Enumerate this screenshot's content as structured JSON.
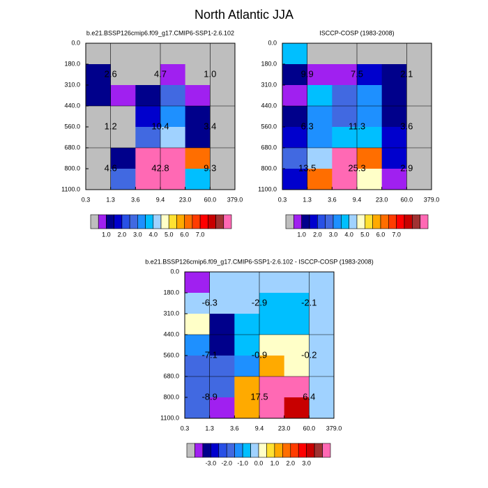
{
  "title": "North Atlantic JJA",
  "chart_data": [
    {
      "type": "heatmap",
      "title": "b.e21.BSSP126cmip6.f09_g17.CMIP6-SSP1-2.6.102",
      "x_edges": [
        "0.3",
        "1.3",
        "3.6",
        "9.4",
        "23.0",
        "60.0",
        "379.0"
      ],
      "y_edges": [
        "0.0",
        "180.0",
        "310.0",
        "440.0",
        "560.0",
        "680.0",
        "800.0",
        "1100.0"
      ],
      "values": [
        [
          0.2,
          0.2,
          0.2,
          0.2,
          0.2,
          0.2
        ],
        [
          1.2,
          0.2,
          0.2,
          0.8,
          0.2,
          0.2
        ],
        [
          1.2,
          0.8,
          1.2,
          2.7,
          0.8,
          0.2
        ],
        [
          0.2,
          0.2,
          1.7,
          3.2,
          1.2,
          0.2
        ],
        [
          0.2,
          0.2,
          2.7,
          4.2,
          1.3,
          0.2
        ],
        [
          0.2,
          1.2,
          9,
          9,
          6.2,
          0.2
        ],
        [
          0.2,
          2.7,
          9,
          9,
          3.7,
          0.2
        ]
      ],
      "summary": {
        "values": [
          [
            2.6,
            4.7,
            1.0
          ],
          [
            1.2,
            10.4,
            3.4
          ],
          [
            4.6,
            42.8,
            9.3
          ]
        ],
        "value_labels": [
          [
            "2.6",
            "4.7",
            "1.0"
          ],
          [
            "1.2",
            "10.4",
            "3.4"
          ],
          [
            "4.6",
            "42.8",
            "9.3"
          ]
        ]
      },
      "levels": [
        0.5,
        1,
        1.5,
        2,
        2.5,
        3,
        3.5,
        4,
        4.5,
        5,
        5.5,
        6,
        6.5,
        7,
        7.5,
        8,
        8.5
      ],
      "colors": [
        "#bebebe",
        "#a020f0",
        "#00008b",
        "#0000cd",
        "#2850e6",
        "#4169e1",
        "#1e90ff",
        "#00bfff",
        "#a0d2ff",
        "#ffffc8",
        "#ffe132",
        "#ffaa00",
        "#ff6e00",
        "#ff3c00",
        "#ff0000",
        "#c80000",
        "#a03232",
        "#ff69b4"
      ],
      "colorbar_ticks": [
        {
          "value": 1,
          "label": "1.0"
        },
        {
          "value": 2,
          "label": "2.0"
        },
        {
          "value": 3,
          "label": "3.0"
        },
        {
          "value": 4,
          "label": "4.0"
        },
        {
          "value": 5,
          "label": "5.0"
        },
        {
          "value": 6,
          "label": "6.0"
        },
        {
          "value": 7,
          "label": "7.0"
        }
      ]
    },
    {
      "type": "heatmap",
      "title": "ISCCP-COSP (1983-2008)",
      "x_edges": [
        "0.3",
        "1.3",
        "3.6",
        "9.4",
        "23.0",
        "60.0",
        "379.0"
      ],
      "y_edges": [
        "0.0",
        "180.0",
        "310.0",
        "440.0",
        "560.0",
        "680.0",
        "800.0",
        "1100.0"
      ],
      "values": [
        [
          3.7,
          0.2,
          0.2,
          0.2,
          0.2,
          0.2
        ],
        [
          1.3,
          0.8,
          0.8,
          1.7,
          1.2,
          0.2
        ],
        [
          0.8,
          3.7,
          2.7,
          3.2,
          1.2,
          0.2
        ],
        [
          1.3,
          3.2,
          2.7,
          3.2,
          1.2,
          0.2
        ],
        [
          1.7,
          3.2,
          3.7,
          3.7,
          1.7,
          0.2
        ],
        [
          2.7,
          4.2,
          9,
          6.2,
          1.7,
          0.2
        ],
        [
          1.7,
          6.2,
          9,
          4.7,
          0.8,
          0.2
        ]
      ],
      "summary": {
        "values": [
          [
            9.9,
            7.5,
            2.1
          ],
          [
            6.3,
            11.3,
            3.6
          ],
          [
            13.5,
            25.3,
            2.9
          ]
        ],
        "value_labels": [
          [
            "9.9",
            "7.5",
            "2.1"
          ],
          [
            "6.3",
            "11.3",
            "3.6"
          ],
          [
            "13.5",
            "25.3",
            "2.9"
          ]
        ]
      },
      "levels": [
        0.5,
        1,
        1.5,
        2,
        2.5,
        3,
        3.5,
        4,
        4.5,
        5,
        5.5,
        6,
        6.5,
        7,
        7.5,
        8,
        8.5
      ],
      "colors": [
        "#bebebe",
        "#a020f0",
        "#00008b",
        "#0000cd",
        "#2850e6",
        "#4169e1",
        "#1e90ff",
        "#00bfff",
        "#a0d2ff",
        "#ffffc8",
        "#ffe132",
        "#ffaa00",
        "#ff6e00",
        "#ff3c00",
        "#ff0000",
        "#c80000",
        "#a03232",
        "#ff69b4"
      ],
      "colorbar_ticks": [
        {
          "value": 1,
          "label": "1.0"
        },
        {
          "value": 2,
          "label": "2.0"
        },
        {
          "value": 3,
          "label": "3.0"
        },
        {
          "value": 4,
          "label": "4.0"
        },
        {
          "value": 5,
          "label": "5.0"
        },
        {
          "value": 6,
          "label": "6.0"
        },
        {
          "value": 7,
          "label": "7.0"
        }
      ]
    },
    {
      "type": "heatmap",
      "title": "b.e21.BSSP126cmip6.f09_g17.CMIP6-SSP1-2.6.102 - ISCCP-COSP (1983-2008)",
      "x_edges": [
        "0.3",
        "1.3",
        "3.6",
        "9.4",
        "23.0",
        "60.0",
        "379.0"
      ],
      "y_edges": [
        "0.0",
        "180.0",
        "310.0",
        "440.0",
        "560.0",
        "680.0",
        "800.0",
        "1100.0"
      ],
      "values": [
        [
          -3.7,
          -0.2,
          -0.2,
          -0.2,
          -0.2,
          -0.2
        ],
        [
          -0.2,
          -0.2,
          -0.2,
          -0.7,
          -0.7,
          -0.2
        ],
        [
          0.2,
          -3.2,
          -0.7,
          -0.7,
          -0.7,
          -0.2
        ],
        [
          -1.2,
          -3.2,
          -0.7,
          0.2,
          0.2,
          -0.2
        ],
        [
          -1.7,
          -1.7,
          -1.2,
          1.2,
          0.2,
          -0.2
        ],
        [
          -1.7,
          -1.7,
          1.2,
          4.5,
          4.5,
          -0.2
        ],
        [
          -1.7,
          -3.7,
          1.2,
          4.5,
          3.2,
          -0.2
        ]
      ],
      "summary": {
        "values": [
          [
            -6.3,
            -2.9,
            -2.1
          ],
          [
            -7.1,
            -0.9,
            -0.2
          ],
          [
            -8.9,
            17.5,
            6.4
          ]
        ],
        "value_labels": [
          [
            "-6.3",
            "-2.9",
            "-2.1"
          ],
          [
            "-7.1",
            "-0.9",
            "-0.2"
          ],
          [
            "-8.9",
            "17.5",
            "6.4"
          ]
        ]
      },
      "levels": [
        -4,
        -3.5,
        -3,
        -2.5,
        -2,
        -1.5,
        -1,
        -0.5,
        0,
        0.5,
        1,
        1.5,
        2,
        2.5,
        3,
        3.5,
        4
      ],
      "colors": [
        "#bebebe",
        "#a020f0",
        "#00008b",
        "#0000cd",
        "#2850e6",
        "#4169e1",
        "#1e90ff",
        "#00bfff",
        "#a0d2ff",
        "#ffffc8",
        "#ffe132",
        "#ffaa00",
        "#ff6e00",
        "#ff3c00",
        "#ff0000",
        "#c80000",
        "#a03232",
        "#ff69b4"
      ],
      "colorbar_ticks": [
        {
          "value": -3,
          "label": "-3.0"
        },
        {
          "value": -2,
          "label": "-2.0"
        },
        {
          "value": -1,
          "label": "-1.0"
        },
        {
          "value": 0,
          "label": "0.0"
        },
        {
          "value": 1,
          "label": "1.0"
        },
        {
          "value": 2,
          "label": "2.0"
        },
        {
          "value": 3,
          "label": "3.0"
        }
      ]
    }
  ]
}
